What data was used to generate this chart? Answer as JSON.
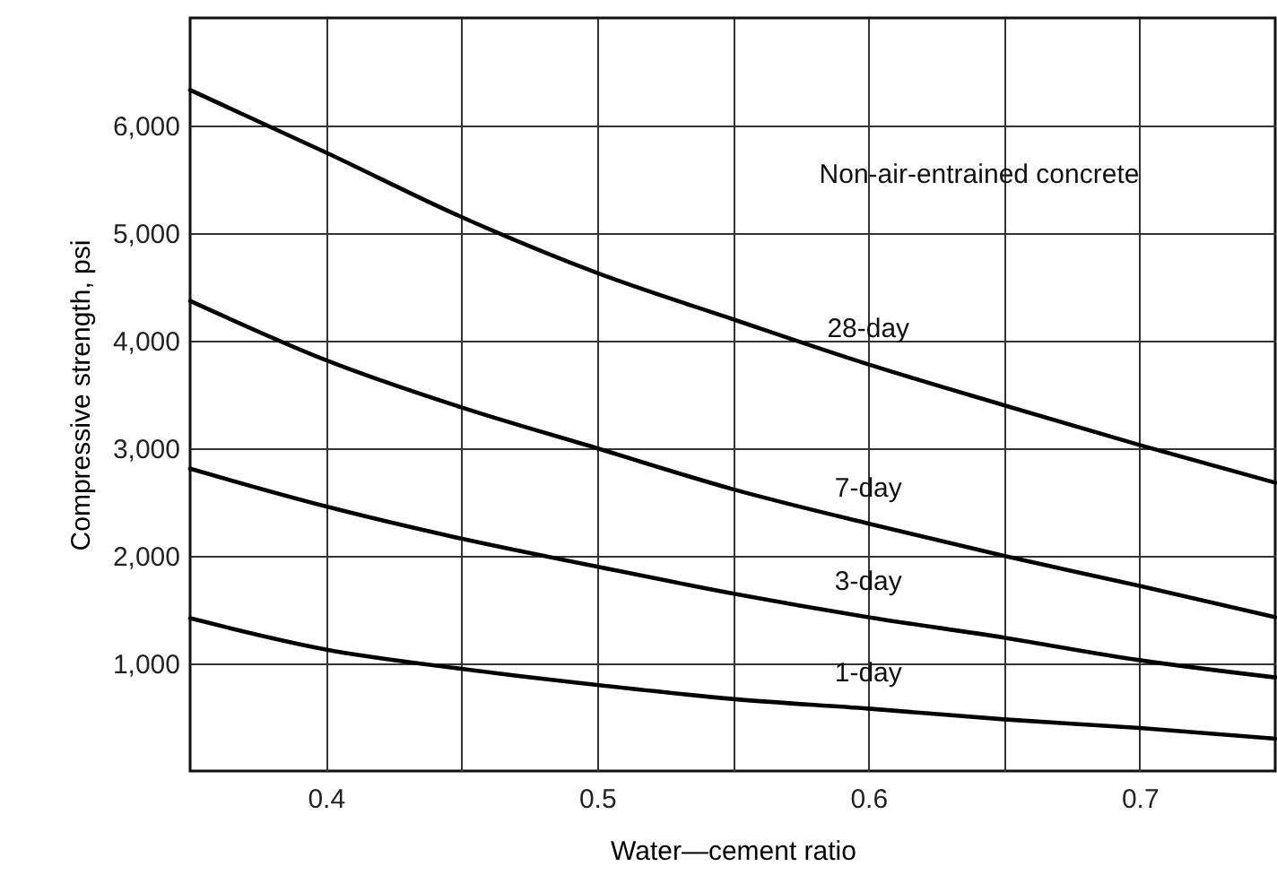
{
  "chart_data": {
    "type": "line",
    "xlabel": "Water—cement ratio",
    "ylabel": "Compressive strength, psi",
    "annotations": [
      "Non-air-entrained concrete"
    ],
    "x": [
      0.35,
      0.4,
      0.45,
      0.5,
      0.55,
      0.6,
      0.65,
      0.7,
      0.75
    ],
    "series": [
      {
        "name": "28-day",
        "color": "#000000",
        "values": [
          6330,
          5750,
          5150,
          4630,
          4200,
          3780,
          3400,
          3030,
          2680
        ]
      },
      {
        "name": "7-day",
        "color": "#000000",
        "values": [
          4370,
          3820,
          3380,
          3000,
          2620,
          2300,
          2000,
          1720,
          1430
        ]
      },
      {
        "name": "3-day",
        "color": "#000000",
        "values": [
          2810,
          2460,
          2160,
          1900,
          1650,
          1430,
          1240,
          1030,
          870
        ]
      },
      {
        "name": "1-day",
        "color": "#000000",
        "values": [
          1420,
          1130,
          950,
          800,
          670,
          580,
          480,
          400,
          300
        ]
      }
    ],
    "xlim": [
      0.35,
      0.75
    ],
    "xticks": [
      0.4,
      {
        "value": 0.45,
        "label": null
      },
      0.5,
      {
        "value": 0.55,
        "label": null
      },
      0.6,
      {
        "value": 0.65,
        "label": null
      },
      0.7
    ],
    "ylim": [
      0,
      7000
    ],
    "yticks": [
      {
        "value": 1000,
        "label": "1,000"
      },
      {
        "value": 2000,
        "label": "2,000"
      },
      {
        "value": 3000,
        "label": "3,000"
      },
      {
        "value": 4000,
        "label": "4,000"
      },
      {
        "value": 5000,
        "label": "5,000"
      },
      {
        "value": 6000,
        "label": "6,000"
      }
    ],
    "grid": true
  }
}
